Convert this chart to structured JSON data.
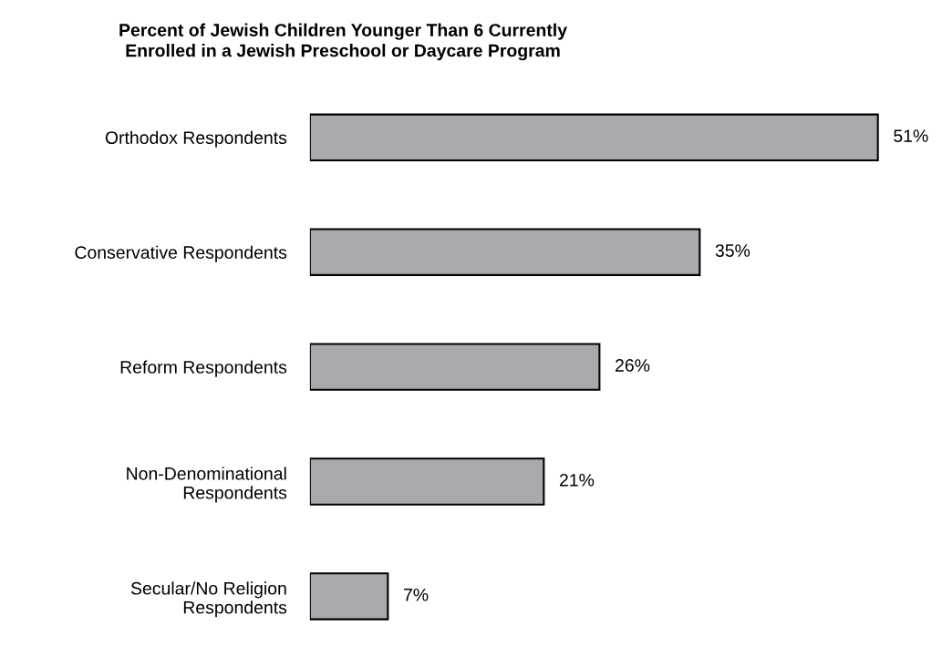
{
  "chart_data": {
    "type": "bar",
    "orientation": "horizontal",
    "title": "Percent of Jewish Children Younger Than 6 Currently\nEnrolled in a Jewish Preschool or Daycare Program",
    "categories": [
      "Orthodox Respondents",
      "Conservative Respondents",
      "Reform Respondents",
      "Non-Denominational\nRespondents",
      "Secular/No Religion\nRespondents"
    ],
    "values": [
      51,
      35,
      26,
      21,
      7
    ],
    "value_labels": [
      "51%",
      "35%",
      "26%",
      "21%",
      "7%"
    ],
    "color": "#a7a9ac",
    "grid": false,
    "legend": false
  }
}
